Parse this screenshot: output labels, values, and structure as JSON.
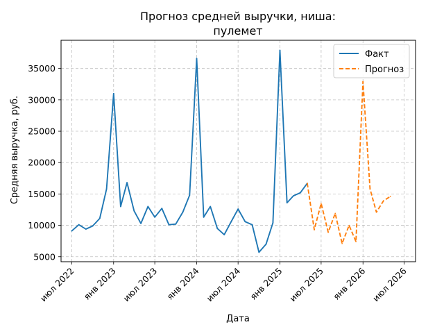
{
  "chart_data": {
    "type": "line",
    "title_line1": "Прогноз средней выручки, ниша:",
    "title_line2": "пулемет",
    "xlabel": "Дата",
    "ylabel": "Средняя выручка, руб.",
    "ylim": [
      4200,
      39500
    ],
    "xlim": [
      "2022-05-15",
      "2026-08-20"
    ],
    "yticks": [
      5000,
      10000,
      15000,
      20000,
      25000,
      30000,
      35000
    ],
    "xticks": [
      {
        "date": "2022-07-01",
        "label": "июл 2022"
      },
      {
        "date": "2023-01-01",
        "label": "янв 2023"
      },
      {
        "date": "2023-07-01",
        "label": "июл 2023"
      },
      {
        "date": "2024-01-01",
        "label": "янв 2024"
      },
      {
        "date": "2024-07-01",
        "label": "июл 2024"
      },
      {
        "date": "2025-01-01",
        "label": "янв 2025"
      },
      {
        "date": "2025-07-01",
        "label": "июл 2025"
      },
      {
        "date": "2026-01-01",
        "label": "янв 2026"
      },
      {
        "date": "2026-07-01",
        "label": "июл 2026"
      }
    ],
    "grid": true,
    "legend_position": "top-right",
    "series": [
      {
        "name": "Факт",
        "color": "#1f77b4",
        "style": "solid",
        "points": [
          {
            "x": "2022-07-01",
            "y": 9100
          },
          {
            "x": "2022-08-01",
            "y": 10100
          },
          {
            "x": "2022-09-01",
            "y": 9400
          },
          {
            "x": "2022-10-01",
            "y": 9900
          },
          {
            "x": "2022-11-01",
            "y": 11100
          },
          {
            "x": "2022-12-01",
            "y": 15800
          },
          {
            "x": "2023-01-01",
            "y": 31000
          },
          {
            "x": "2023-02-01",
            "y": 13000
          },
          {
            "x": "2023-03-01",
            "y": 16800
          },
          {
            "x": "2023-04-01",
            "y": 12300
          },
          {
            "x": "2023-05-01",
            "y": 10300
          },
          {
            "x": "2023-06-01",
            "y": 13000
          },
          {
            "x": "2023-07-01",
            "y": 11300
          },
          {
            "x": "2023-08-01",
            "y": 12700
          },
          {
            "x": "2023-09-01",
            "y": 10100
          },
          {
            "x": "2023-10-01",
            "y": 10200
          },
          {
            "x": "2023-11-01",
            "y": 12100
          },
          {
            "x": "2023-12-01",
            "y": 14800
          },
          {
            "x": "2024-01-01",
            "y": 36600
          },
          {
            "x": "2024-02-01",
            "y": 11300
          },
          {
            "x": "2024-03-01",
            "y": 13000
          },
          {
            "x": "2024-04-01",
            "y": 9500
          },
          {
            "x": "2024-05-01",
            "y": 8500
          },
          {
            "x": "2024-06-01",
            "y": 10600
          },
          {
            "x": "2024-07-01",
            "y": 12600
          },
          {
            "x": "2024-08-01",
            "y": 10600
          },
          {
            "x": "2024-09-01",
            "y": 10100
          },
          {
            "x": "2024-10-01",
            "y": 5700
          },
          {
            "x": "2024-11-01",
            "y": 7000
          },
          {
            "x": "2024-12-01",
            "y": 10400
          },
          {
            "x": "2025-01-01",
            "y": 37900
          },
          {
            "x": "2025-02-01",
            "y": 13600
          },
          {
            "x": "2025-03-01",
            "y": 14700
          },
          {
            "x": "2025-04-01",
            "y": 15200
          },
          {
            "x": "2025-05-01",
            "y": 16700
          }
        ]
      },
      {
        "name": "Прогноз",
        "color": "#ff7f0e",
        "style": "dashed",
        "points": [
          {
            "x": "2025-05-01",
            "y": 16700
          },
          {
            "x": "2025-06-01",
            "y": 9300
          },
          {
            "x": "2025-07-01",
            "y": 13500
          },
          {
            "x": "2025-08-01",
            "y": 8900
          },
          {
            "x": "2025-09-01",
            "y": 11900
          },
          {
            "x": "2025-10-01",
            "y": 7100
          },
          {
            "x": "2025-11-01",
            "y": 10000
          },
          {
            "x": "2025-12-01",
            "y": 7400
          },
          {
            "x": "2026-01-01",
            "y": 32900
          },
          {
            "x": "2026-02-01",
            "y": 15800
          },
          {
            "x": "2026-03-01",
            "y": 12100
          },
          {
            "x": "2026-04-01",
            "y": 13900
          },
          {
            "x": "2026-05-01",
            "y": 14600
          }
        ]
      }
    ]
  }
}
